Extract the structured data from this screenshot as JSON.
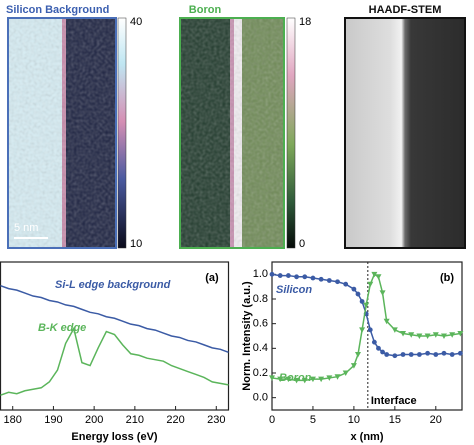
{
  "chart_data": [
    {
      "type": "heatmap",
      "title": "Silicon Background",
      "title_color": "#3b5fb0",
      "clim": [
        10,
        40
      ],
      "annotation": "5 nm"
    },
    {
      "type": "heatmap",
      "title": "Boron",
      "title_color": "#4caf50",
      "clim": [
        0,
        18
      ]
    },
    {
      "type": "image",
      "title": "HAADF-STEM",
      "title_color": "#111111"
    },
    {
      "type": "line",
      "xlabel": "Energy loss (eV)",
      "panel_label": "(a)",
      "x": [
        177,
        179,
        181,
        183,
        185,
        187,
        189,
        191,
        193,
        195,
        197,
        199,
        201,
        203,
        205,
        207,
        209,
        211,
        213,
        215,
        217,
        219,
        221,
        223,
        225,
        227,
        229,
        231,
        233
      ],
      "xlim": [
        177,
        233
      ],
      "ylim": [
        0,
        1
      ],
      "xticks": [
        180,
        190,
        200,
        210,
        220,
        230
      ],
      "series": [
        {
          "name": "Si-L edge background",
          "color": "#3b5ba5",
          "values": [
            0.84,
            0.82,
            0.81,
            0.79,
            0.77,
            0.76,
            0.74,
            0.73,
            0.71,
            0.7,
            0.68,
            0.66,
            0.65,
            0.63,
            0.62,
            0.6,
            0.58,
            0.57,
            0.55,
            0.54,
            0.52,
            0.5,
            0.49,
            0.47,
            0.46,
            0.44,
            0.42,
            0.41,
            0.39
          ]
        },
        {
          "name": "B-K edge",
          "color": "#5bb55b",
          "values": [
            0.1,
            0.12,
            0.11,
            0.13,
            0.14,
            0.15,
            0.19,
            0.27,
            0.45,
            0.55,
            0.32,
            0.3,
            0.42,
            0.53,
            0.51,
            0.44,
            0.38,
            0.37,
            0.35,
            0.34,
            0.33,
            0.3,
            0.28,
            0.26,
            0.24,
            0.22,
            0.19,
            0.18,
            0.17
          ]
        }
      ]
    },
    {
      "type": "line",
      "xlabel": "x (nm)",
      "ylabel": "Norm. Intensity (a.u.)",
      "panel_label": "(b)",
      "x": [
        0,
        1,
        2,
        3,
        4,
        5,
        6,
        7,
        8,
        9,
        10,
        10.5,
        11,
        11.5,
        12,
        12.5,
        13,
        13.5,
        14,
        15,
        16,
        17,
        18,
        19,
        20,
        21,
        22,
        23
      ],
      "xlim": [
        0,
        23.2
      ],
      "ylim": [
        -0.1,
        1.1
      ],
      "xticks": [
        0,
        5,
        10,
        15,
        20
      ],
      "yticks": [
        {
          "value": 0,
          "label": "0.0"
        },
        {
          "value": 0.2,
          "label": "0.2"
        },
        {
          "value": 0.4,
          "label": "0.4"
        },
        {
          "value": 0.6,
          "label": "0.6"
        },
        {
          "value": 0.8,
          "label": "0.8"
        },
        {
          "value": 1,
          "label": "1.0"
        }
      ],
      "vline": {
        "x": 11.7,
        "label": "Interface"
      },
      "series": [
        {
          "name": "Silicon",
          "color": "#3b5ba5",
          "marker": "circle",
          "values": [
            1.0,
            0.99,
            0.99,
            0.98,
            0.98,
            0.97,
            0.96,
            0.95,
            0.94,
            0.92,
            0.88,
            0.84,
            0.78,
            0.68,
            0.55,
            0.45,
            0.4,
            0.37,
            0.35,
            0.34,
            0.35,
            0.35,
            0.35,
            0.36,
            0.35,
            0.36,
            0.35,
            0.36
          ]
        },
        {
          "name": "Boron",
          "color": "#5bb55b",
          "marker": "triangle-down",
          "values": [
            0.16,
            0.15,
            0.15,
            0.14,
            0.14,
            0.15,
            0.15,
            0.16,
            0.17,
            0.2,
            0.26,
            0.35,
            0.55,
            0.75,
            0.92,
            1.0,
            0.98,
            0.85,
            0.62,
            0.55,
            0.52,
            0.51,
            0.5,
            0.5,
            0.51,
            0.5,
            0.51,
            0.52
          ]
        }
      ]
    }
  ]
}
